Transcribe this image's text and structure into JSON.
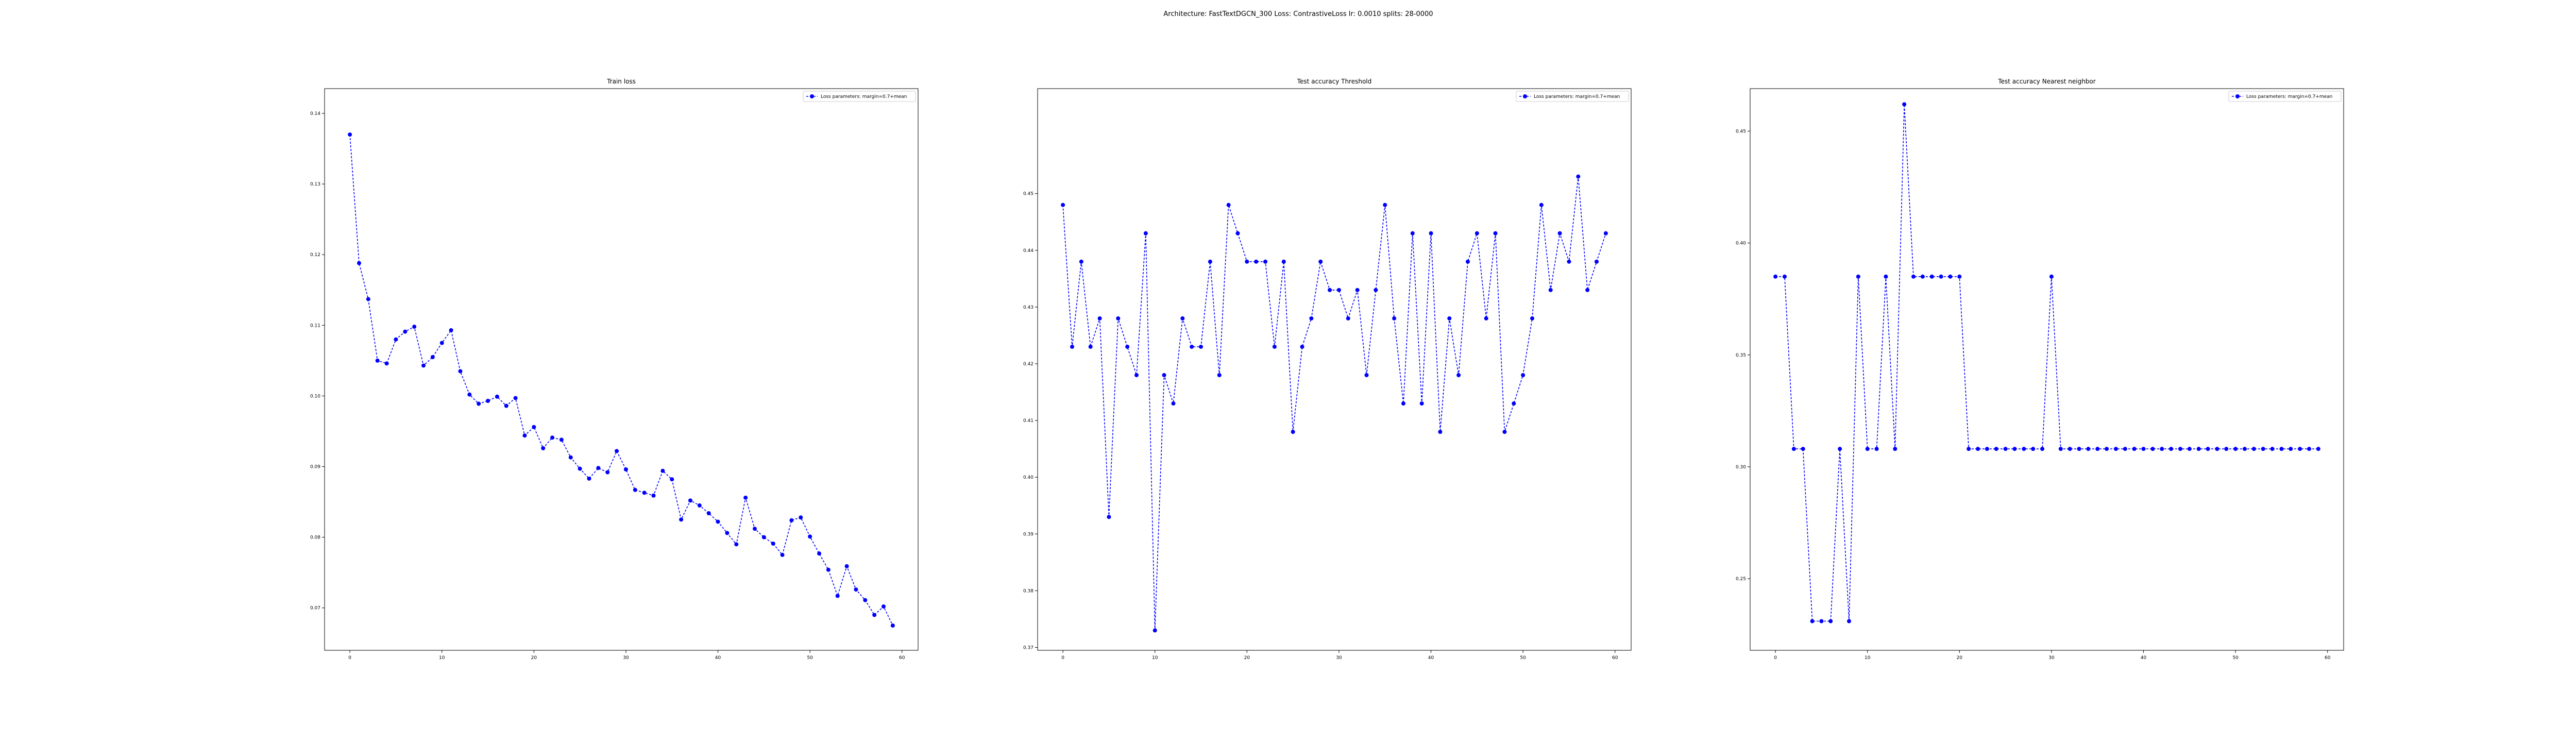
{
  "figure": {
    "suptitle": "Architecture: FastTextDGCN_300 Loss: ContrastiveLoss lr: 0.0010 splits: 28-0000"
  },
  "chart_data": [
    {
      "type": "line",
      "title": "Train loss",
      "xlabel": "",
      "ylabel": "",
      "xlim": [
        -2.75,
        61.75
      ],
      "ylim": [
        0.064,
        0.1435
      ],
      "xticks": [
        0,
        10,
        20,
        30,
        40,
        50,
        60
      ],
      "yticks": [
        0.07,
        0.08,
        0.09,
        0.1,
        0.11,
        0.12,
        0.13,
        0.14
      ],
      "ytick_labels": [
        "0.07",
        "0.08",
        "0.09",
        "0.10",
        "0.11",
        "0.12",
        "0.13",
        "0.14"
      ],
      "legend_position": "top-right",
      "grid": false,
      "series": [
        {
          "name": "Loss parameters: margin=0.7+mean",
          "color": "#0000ff",
          "x": [
            0,
            1,
            2,
            3,
            4,
            5,
            6,
            7,
            8,
            9,
            10,
            11,
            12,
            13,
            14,
            15,
            16,
            17,
            18,
            19,
            20,
            21,
            22,
            23,
            24,
            25,
            26,
            27,
            28,
            29,
            30,
            31,
            32,
            33,
            34,
            35,
            36,
            37,
            38,
            39,
            40,
            41,
            42,
            43,
            44,
            45,
            46,
            47,
            48,
            49,
            50,
            51,
            52,
            53,
            54,
            55,
            56,
            57,
            58,
            59
          ],
          "values": [
            0.137,
            0.1188,
            0.1137,
            0.105,
            0.1046,
            0.108,
            0.1091,
            0.1098,
            0.1043,
            0.1055,
            0.1075,
            0.1093,
            0.1035,
            0.1002,
            0.0989,
            0.0993,
            0.0999,
            0.0986,
            0.0997,
            0.0944,
            0.0956,
            0.0926,
            0.0941,
            0.0938,
            0.0913,
            0.0897,
            0.0883,
            0.0898,
            0.0892,
            0.0922,
            0.0896,
            0.0867,
            0.0863,
            0.0859,
            0.0894,
            0.0882,
            0.0825,
            0.0852,
            0.0845,
            0.0834,
            0.0822,
            0.0806,
            0.079,
            0.0856,
            0.0812,
            0.08,
            0.0791,
            0.0775,
            0.0824,
            0.0828,
            0.0801,
            0.0777,
            0.0754,
            0.0717,
            0.0759,
            0.0726,
            0.0711,
            0.069,
            0.0702,
            0.0675
          ]
        }
      ]
    },
    {
      "type": "line",
      "title": "Test accuracy Threshold",
      "xlabel": "",
      "ylabel": "",
      "xlim": [
        -2.75,
        61.75
      ],
      "ylim": [
        0.3695,
        0.4685
      ],
      "xticks": [
        0,
        10,
        20,
        30,
        40,
        50,
        60
      ],
      "yticks": [
        0.37,
        0.38,
        0.39,
        0.4,
        0.41,
        0.42,
        0.43,
        0.44,
        0.45
      ],
      "ytick_labels": [
        "0.37",
        "0.38",
        "0.39",
        "0.40",
        "0.41",
        "0.42",
        "0.43",
        "0.44",
        "0.45"
      ],
      "legend_position": "top-right",
      "grid": false,
      "series": [
        {
          "name": "Loss parameters: margin=0.7+mean",
          "color": "#0000ff",
          "x": [
            0,
            1,
            2,
            3,
            4,
            5,
            6,
            7,
            8,
            9,
            10,
            11,
            12,
            13,
            14,
            15,
            16,
            17,
            18,
            19,
            20,
            21,
            22,
            23,
            24,
            25,
            26,
            27,
            28,
            29,
            30,
            31,
            32,
            33,
            34,
            35,
            36,
            37,
            38,
            39,
            40,
            41,
            42,
            43,
            44,
            45,
            46,
            47,
            48,
            49,
            50,
            51,
            52,
            53,
            54,
            55,
            56,
            57,
            58,
            59
          ],
          "values": [
            0.448,
            0.423,
            0.438,
            0.423,
            0.428,
            0.393,
            0.428,
            0.423,
            0.418,
            0.443,
            0.373,
            0.418,
            0.413,
            0.428,
            0.423,
            0.423,
            0.438,
            0.418,
            0.448,
            0.443,
            0.438,
            0.438,
            0.438,
            0.423,
            0.438,
            0.408,
            0.423,
            0.428,
            0.438,
            0.433,
            0.433,
            0.428,
            0.433,
            0.418,
            0.433,
            0.448,
            0.428,
            0.413,
            0.443,
            0.413,
            0.443,
            0.408,
            0.428,
            0.418,
            0.438,
            0.443,
            0.428,
            0.443,
            0.408,
            0.413,
            0.418,
            0.428,
            0.448,
            0.433,
            0.443,
            0.438,
            0.453,
            0.433,
            0.438,
            0.443
          ]
        }
      ]
    },
    {
      "type": "line",
      "title": "Test accuracy Nearest neighbor",
      "xlabel": "",
      "ylabel": "",
      "xlim": [
        -2.75,
        61.75
      ],
      "ylim": [
        0.218,
        0.469
      ],
      "xticks": [
        0,
        10,
        20,
        30,
        40,
        50,
        60
      ],
      "yticks": [
        0.25,
        0.3,
        0.35,
        0.4,
        0.45
      ],
      "ytick_labels": [
        "0.25",
        "0.30",
        "0.35",
        "0.40",
        "0.45"
      ],
      "legend_position": "top-right",
      "grid": false,
      "series": [
        {
          "name": "Loss parameters: margin=0.7+mean",
          "color": "#0000ff",
          "x": [
            0,
            1,
            2,
            3,
            4,
            5,
            6,
            7,
            8,
            9,
            10,
            11,
            12,
            13,
            14,
            15,
            16,
            17,
            18,
            19,
            20,
            21,
            22,
            23,
            24,
            25,
            26,
            27,
            28,
            29,
            30,
            31,
            32,
            33,
            34,
            35,
            36,
            37,
            38,
            39,
            40,
            41,
            42,
            43,
            44,
            45,
            46,
            47,
            48,
            49,
            50,
            51,
            52,
            53,
            54,
            55,
            56,
            57,
            58,
            59
          ],
          "values": [
            0.385,
            0.385,
            0.308,
            0.308,
            0.231,
            0.231,
            0.231,
            0.308,
            0.231,
            0.385,
            0.308,
            0.308,
            0.385,
            0.308,
            0.462,
            0.385,
            0.385,
            0.385,
            0.385,
            0.385,
            0.385,
            0.308,
            0.308,
            0.308,
            0.308,
            0.308,
            0.308,
            0.308,
            0.308,
            0.308,
            0.385,
            0.308,
            0.308,
            0.308,
            0.308,
            0.308,
            0.308,
            0.308,
            0.308,
            0.308,
            0.308,
            0.308,
            0.308,
            0.308,
            0.308,
            0.308,
            0.308,
            0.308,
            0.308,
            0.308,
            0.308,
            0.308,
            0.308,
            0.308,
            0.308,
            0.308,
            0.308,
            0.308,
            0.308,
            0.308
          ]
        }
      ]
    }
  ]
}
